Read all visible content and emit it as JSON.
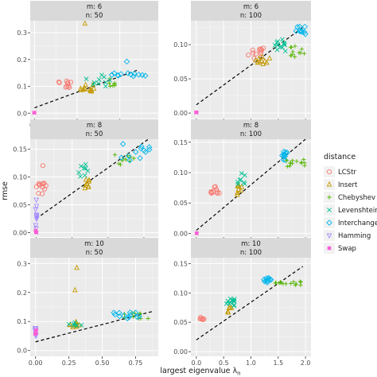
{
  "chart_data": {
    "type": "scatter",
    "title": "",
    "xlabel": "largest eigenvalue λ",
    "xlabel_subscript": "n",
    "ylabel": "rmse",
    "facet_row_label": "m:",
    "facet_col_label": "n:",
    "grid": true,
    "legend": {
      "title": "distance",
      "position": "right",
      "entries": [
        {
          "name": "LCStr",
          "shape": "circle",
          "color": "#F8766D"
        },
        {
          "name": "Insert",
          "shape": "triangle",
          "color": "#C49A00"
        },
        {
          "name": "Chebyshev",
          "shape": "plus",
          "color": "#53B400"
        },
        {
          "name": "Levenshtein",
          "shape": "cross",
          "color": "#00C094"
        },
        {
          "name": "Interchange",
          "shape": "diamond",
          "color": "#00B6EB"
        },
        {
          "name": "Hamming",
          "shape": "triangle-down",
          "color": "#A58AFF"
        },
        {
          "name": "Swap",
          "shape": "square",
          "color": "#FB61D7"
        }
      ]
    },
    "panels": [
      {
        "m": "6",
        "n": "50",
        "xlim": [
          -0.05,
          1.45
        ],
        "ylim": [
          -0.02,
          0.345
        ],
        "xticks": [
          0.0,
          0.5,
          1.0
        ],
        "xtick_labels": [
          "0.0",
          "0.5",
          "1.0"
        ],
        "yticks": [
          0.0,
          0.1,
          0.2,
          0.3
        ],
        "ytick_labels": [
          "0.0",
          "0.1",
          "0.2",
          "0.3"
        ],
        "trend_line": [
          [
            0.0,
            0.02
          ],
          [
            1.2,
            0.16
          ]
        ],
        "clusters": [
          {
            "series": "LCStr",
            "x": [
              0.25,
              0.45
            ],
            "y": [
              0.09,
              0.12
            ],
            "n": 10
          },
          {
            "series": "Insert",
            "x": [
              0.52,
              0.7
            ],
            "y": [
              0.075,
              0.11
            ],
            "n": 12
          },
          {
            "series": "Insert",
            "x": [
              0.58,
              0.6
            ],
            "y": [
              0.33,
              0.335
            ],
            "n": 1
          },
          {
            "series": "Chebyshev",
            "x": [
              0.8,
              1.0
            ],
            "y": [
              0.1,
              0.13
            ],
            "n": 7
          },
          {
            "series": "Levenshtein",
            "x": [
              0.6,
              0.95
            ],
            "y": [
              0.1,
              0.15
            ],
            "n": 10
          },
          {
            "series": "Interchange",
            "x": [
              0.9,
              1.3
            ],
            "y": [
              0.13,
              0.15
            ],
            "n": 12
          },
          {
            "series": "Interchange",
            "x": [
              1.08,
              1.1
            ],
            "y": [
              0.19,
              0.2
            ],
            "n": 1
          },
          {
            "series": "Swap",
            "x": [
              -0.01,
              0.01
            ],
            "y": [
              0.0,
              0.002
            ],
            "n": 2
          }
        ]
      },
      {
        "m": "6",
        "n": "100",
        "xlim": [
          -0.1,
          2.1
        ],
        "ylim": [
          -0.008,
          0.135
        ],
        "xticks": [
          0.0,
          0.5,
          1.0,
          1.5,
          2.0
        ],
        "xtick_labels": [
          "0.0",
          "0.5",
          "1.0",
          "1.5",
          "2.0"
        ],
        "yticks": [
          0.0,
          0.05,
          0.1
        ],
        "ytick_labels": [
          "0.00",
          "0.05",
          "0.10"
        ],
        "trend_line": [
          [
            0.0,
            0.012
          ],
          [
            1.95,
            0.125
          ]
        ],
        "clusters": [
          {
            "series": "LCStr",
            "x": [
              0.95,
              1.3
            ],
            "y": [
              0.08,
              0.095
            ],
            "n": 12
          },
          {
            "series": "Insert",
            "x": [
              1.05,
              1.35
            ],
            "y": [
              0.068,
              0.085
            ],
            "n": 10
          },
          {
            "series": "Chebyshev",
            "x": [
              1.7,
              2.0
            ],
            "y": [
              0.082,
              0.098
            ],
            "n": 12
          },
          {
            "series": "Levenshtein",
            "x": [
              1.4,
              1.7
            ],
            "y": [
              0.09,
              0.108
            ],
            "n": 12
          },
          {
            "series": "Interchange",
            "x": [
              1.82,
              2.0
            ],
            "y": [
              0.115,
              0.127
            ],
            "n": 10
          },
          {
            "series": "Swap",
            "x": [
              -0.01,
              0.01
            ],
            "y": [
              0.0,
              0.001
            ],
            "n": 2
          }
        ]
      },
      {
        "m": "8",
        "n": "50",
        "xlim": [
          -0.05,
          1.02
        ],
        "ylim": [
          -0.008,
          0.168
        ],
        "xticks": [
          0.0,
          0.3,
          0.6,
          0.9
        ],
        "xtick_labels": [
          "0.0",
          "0.3",
          "0.6",
          "0.9"
        ],
        "yticks": [
          0.0,
          0.05,
          0.1,
          0.15
        ],
        "ytick_labels": [
          "0.00",
          "0.05",
          "0.10",
          "0.15"
        ],
        "trend_line": [
          [
            0.0,
            0.025
          ],
          [
            0.95,
            0.17
          ]
        ],
        "clusters": [
          {
            "series": "LCStr",
            "x": [
              0.0,
              0.09
            ],
            "y": [
              0.068,
              0.09
            ],
            "n": 12
          },
          {
            "series": "LCStr",
            "x": [
              0.04,
              0.06
            ],
            "y": [
              0.12,
              0.122
            ],
            "n": 1
          },
          {
            "series": "Insert",
            "x": [
              0.4,
              0.45
            ],
            "y": [
              0.078,
              0.098
            ],
            "n": 8
          },
          {
            "series": "Levenshtein",
            "x": [
              0.35,
              0.45
            ],
            "y": [
              0.1,
              0.125
            ],
            "n": 8
          },
          {
            "series": "Chebyshev",
            "x": [
              0.65,
              0.82
            ],
            "y": [
              0.12,
              0.14
            ],
            "n": 10
          },
          {
            "series": "Interchange",
            "x": [
              0.7,
              0.95
            ],
            "y": [
              0.13,
              0.16
            ],
            "n": 12
          },
          {
            "series": "Hamming",
            "x": [
              -0.005,
              0.005
            ],
            "y": [
              0.005,
              0.06
            ],
            "n": 10
          },
          {
            "series": "Swap",
            "x": [
              -0.005,
              0.005
            ],
            "y": [
              0.0,
              0.004
            ],
            "n": 3
          }
        ]
      },
      {
        "m": "8",
        "n": "100",
        "xlim": [
          -0.1,
          2.1
        ],
        "ylim": [
          -0.006,
          0.155
        ],
        "xticks": [
          0.0,
          0.5,
          1.0,
          1.5,
          2.0
        ],
        "xtick_labels": [
          "0.0",
          "0.5",
          "1.0",
          "1.5",
          "2.0"
        ],
        "yticks": [
          0.0,
          0.05,
          0.1,
          0.15
        ],
        "ytick_labels": [
          "0.00",
          "0.05",
          "0.10",
          "0.15"
        ],
        "trend_line": [
          [
            0.0,
            0.005
          ],
          [
            2.0,
            0.155
          ]
        ],
        "clusters": [
          {
            "series": "LCStr",
            "x": [
              0.25,
              0.45
            ],
            "y": [
              0.065,
              0.078
            ],
            "n": 10
          },
          {
            "series": "Insert",
            "x": [
              0.75,
              0.85
            ],
            "y": [
              0.06,
              0.085
            ],
            "n": 8
          },
          {
            "series": "Levenshtein",
            "x": [
              0.75,
              0.9
            ],
            "y": [
              0.08,
              0.1
            ],
            "n": 8
          },
          {
            "series": "Interchange",
            "x": [
              1.55,
              1.7
            ],
            "y": [
              0.12,
              0.135
            ],
            "n": 10
          },
          {
            "series": "Chebyshev",
            "x": [
              1.6,
              2.0
            ],
            "y": [
              0.11,
              0.122
            ],
            "n": 14
          },
          {
            "series": "Swap",
            "x": [
              -0.01,
              0.01
            ],
            "y": [
              0.0,
              0.001
            ],
            "n": 2
          }
        ]
      },
      {
        "m": "10",
        "n": "50",
        "xlim": [
          -0.04,
          0.92
        ],
        "ylim": [
          -0.02,
          0.32
        ],
        "xticks": [
          0.0,
          0.25,
          0.5,
          0.75
        ],
        "xtick_labels": [
          "0.00",
          "0.25",
          "0.50",
          "0.75"
        ],
        "yticks": [
          0.0,
          0.1,
          0.2,
          0.3
        ],
        "ytick_labels": [
          "0.0",
          "0.1",
          "0.2",
          "0.3"
        ],
        "trend_line": [
          [
            0.0,
            0.03
          ],
          [
            0.88,
            0.135
          ]
        ],
        "clusters": [
          {
            "series": "Insert",
            "x": [
              0.24,
              0.33
            ],
            "y": [
              0.08,
              0.1
            ],
            "n": 10
          },
          {
            "series": "Insert",
            "x": [
              0.29,
              0.31
            ],
            "y": [
              0.28,
              0.29
            ],
            "n": 1
          },
          {
            "series": "Insert",
            "x": [
              0.28,
              0.3
            ],
            "y": [
              0.2,
              0.21
            ],
            "n": 1
          },
          {
            "series": "Levenshtein",
            "x": [
              0.25,
              0.35
            ],
            "y": [
              0.085,
              0.1
            ],
            "n": 6
          },
          {
            "series": "Chebyshev",
            "x": [
              0.65,
              0.88
            ],
            "y": [
              0.11,
              0.13
            ],
            "n": 10
          },
          {
            "series": "Interchange",
            "x": [
              0.55,
              0.8
            ],
            "y": [
              0.11,
              0.135
            ],
            "n": 12
          },
          {
            "series": "Hamming",
            "x": [
              -0.005,
              0.005
            ],
            "y": [
              0.05,
              0.08
            ],
            "n": 8
          },
          {
            "series": "Swap",
            "x": [
              -0.005,
              0.005
            ],
            "y": [
              0.055,
              0.07
            ],
            "n": 3
          }
        ]
      },
      {
        "m": "10",
        "n": "100",
        "xlim": [
          -0.1,
          2.1
        ],
        "ylim": [
          -0.008,
          0.16
        ],
        "xticks": [
          0.0,
          0.5,
          1.0,
          1.5,
          2.0
        ],
        "xtick_labels": [
          "0.0",
          "0.5",
          "1.0",
          "1.5",
          "2.0"
        ],
        "yticks": [
          0.0,
          0.05,
          0.1,
          0.15
        ],
        "ytick_labels": [
          "0.00",
          "0.05",
          "0.10",
          "0.15"
        ],
        "trend_line": [
          [
            0.0,
            0.02
          ],
          [
            1.95,
            0.145
          ]
        ],
        "clusters": [
          {
            "series": "LCStr",
            "x": [
              0.05,
              0.15
            ],
            "y": [
              0.052,
              0.062
            ],
            "n": 6
          },
          {
            "series": "Insert",
            "x": [
              0.55,
              0.65
            ],
            "y": [
              0.065,
              0.078
            ],
            "n": 5
          },
          {
            "series": "Levenshtein",
            "x": [
              0.55,
              0.7
            ],
            "y": [
              0.078,
              0.09
            ],
            "n": 12
          },
          {
            "series": "Interchange",
            "x": [
              1.22,
              1.37
            ],
            "y": [
              0.116,
              0.126
            ],
            "n": 10
          },
          {
            "series": "Chebyshev",
            "x": [
              1.4,
              1.95
            ],
            "y": [
              0.113,
              0.12
            ],
            "n": 14
          }
        ]
      }
    ]
  }
}
